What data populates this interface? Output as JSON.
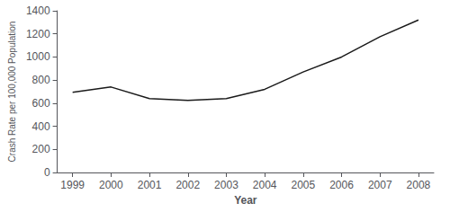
{
  "chart_data": {
    "type": "line",
    "x": [
      1999,
      2000,
      2001,
      2002,
      2003,
      2004,
      2005,
      2006,
      2007,
      2008
    ],
    "values": [
      695,
      740,
      640,
      625,
      640,
      720,
      870,
      1000,
      1175,
      1320
    ],
    "color": "#1a1a1a",
    "xlabel": "Year",
    "ylabel": "Crash Rate per 100,000 Population",
    "xlim": [
      1998.6,
      2008.4
    ],
    "xticks": [
      1999,
      2000,
      2001,
      2002,
      2003,
      2004,
      2005,
      2006,
      2007,
      2008
    ],
    "ylim": [
      0,
      1400
    ],
    "yticks": [
      0,
      200,
      400,
      600,
      800,
      1000,
      1200,
      1400
    ],
    "grid": false
  }
}
